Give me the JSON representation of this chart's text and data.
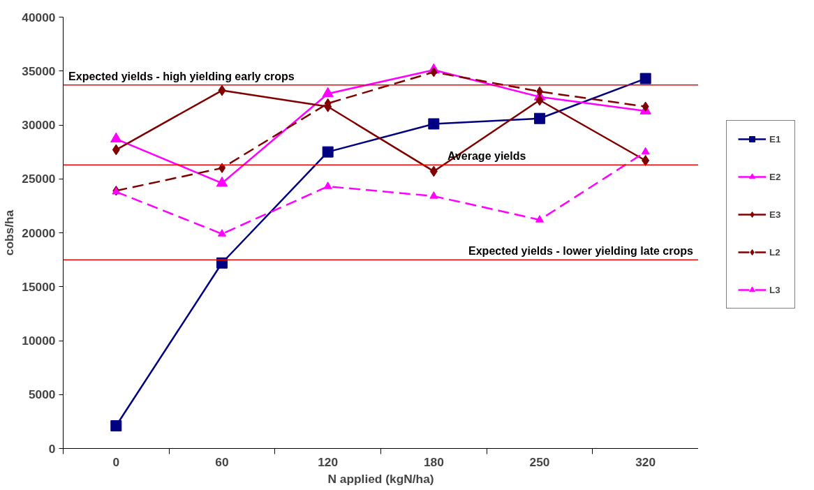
{
  "chart_data": {
    "type": "line",
    "xlabel": "N applied (kgN/ha)",
    "ylabel": "cobs/ha",
    "categories": [
      "0",
      "60",
      "120",
      "180",
      "250",
      "320"
    ],
    "ylim": [
      0,
      40000
    ],
    "yticks": [
      0,
      5000,
      10000,
      15000,
      20000,
      25000,
      30000,
      35000,
      40000
    ],
    "grid": false,
    "legend": "right",
    "series": [
      {
        "name": "E1",
        "color": "#000080",
        "marker": "square",
        "line_style": "solid",
        "values": [
          2100,
          17200,
          27500,
          30100,
          30600,
          34300
        ]
      },
      {
        "name": "E2",
        "color": "#ff00ff",
        "marker": "triangle",
        "line_style": "solid",
        "values": [
          28700,
          24600,
          32900,
          35100,
          32600,
          31300
        ]
      },
      {
        "name": "E3",
        "color": "#800000",
        "marker": "diamond",
        "line_style": "solid",
        "values": [
          27700,
          33200,
          31700,
          25700,
          32300,
          26700
        ]
      },
      {
        "name": "L2",
        "color": "#800000",
        "marker": "diamond",
        "line_style": "dashed",
        "values": [
          23900,
          26000,
          32000,
          34900,
          33100,
          31700
        ]
      },
      {
        "name": "L3",
        "color": "#ff00ff",
        "marker": "triangle",
        "line_style": "dashed",
        "values": [
          23800,
          19900,
          24300,
          23400,
          21200,
          27500
        ]
      }
    ],
    "ref_lines": [
      {
        "axis": "y",
        "value": 33700,
        "label": "Expected yields - high yielding early crops",
        "color": "#ff0000"
      },
      {
        "axis": "y",
        "value": 26300,
        "label": "Average yields",
        "color": "#ff0000"
      },
      {
        "axis": "y",
        "value": 17500,
        "label": "Expected yields - lower yielding late crops",
        "color": "#ff0000"
      }
    ]
  }
}
